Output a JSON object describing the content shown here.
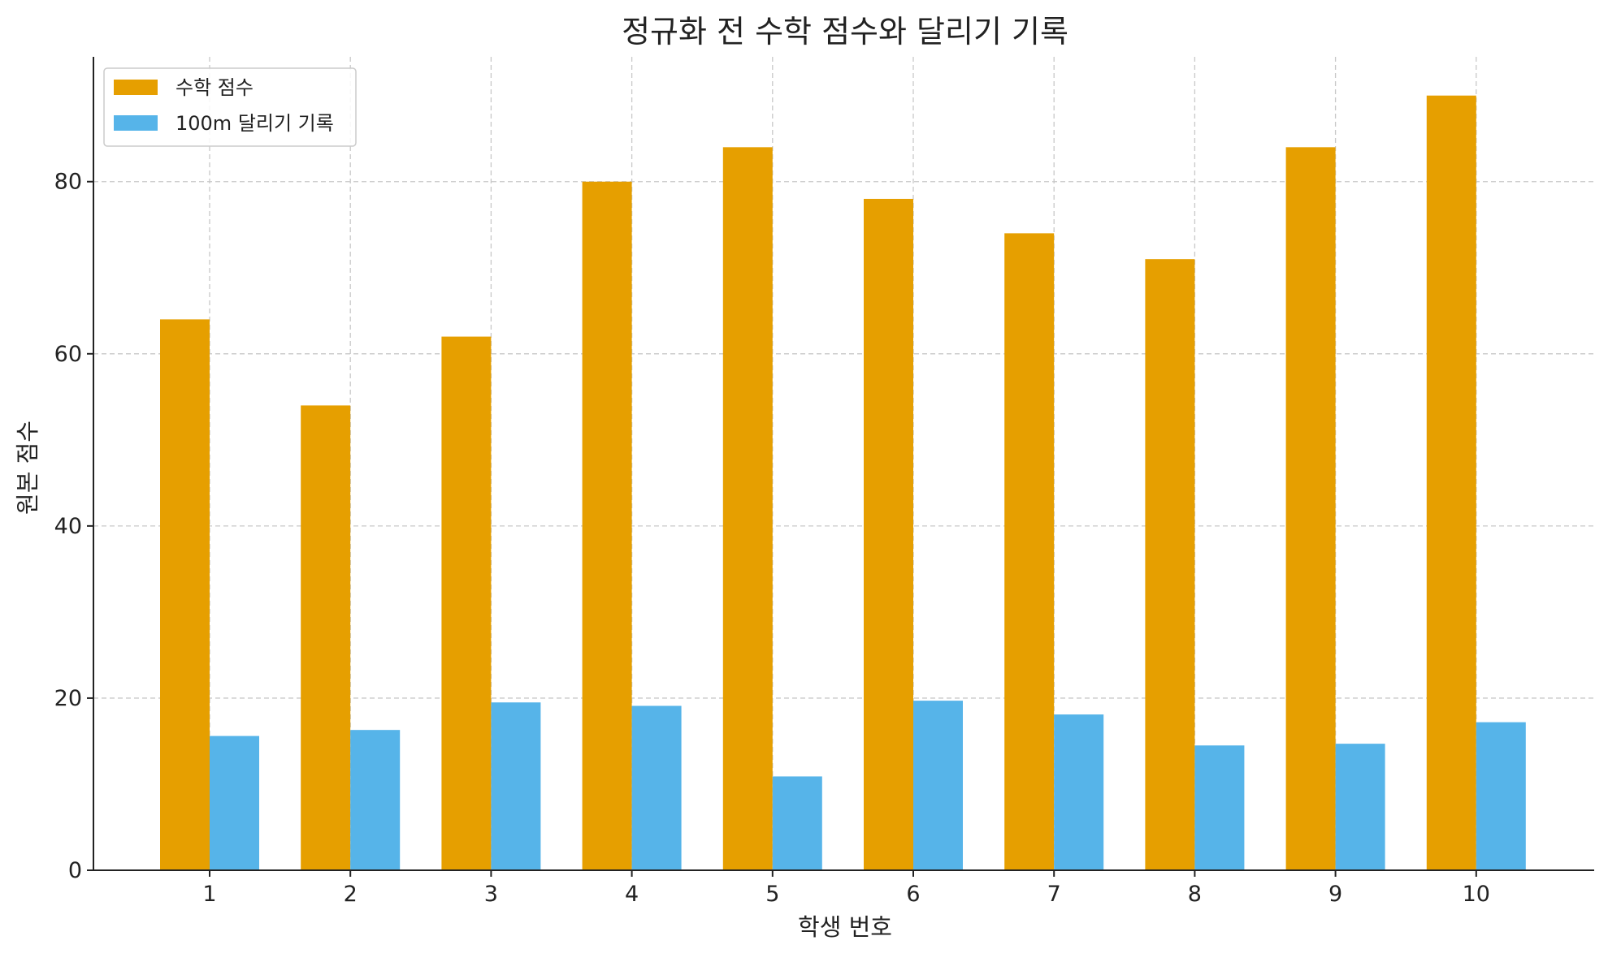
{
  "chart_data": {
    "type": "bar",
    "title": "정규화 전 수학 점수와 달리기 기록",
    "xlabel": "학생 번호",
    "ylabel": "원본 점수",
    "categories": [
      "1",
      "2",
      "3",
      "4",
      "5",
      "6",
      "7",
      "8",
      "9",
      "10"
    ],
    "series": [
      {
        "name": "수학 점수",
        "color": "#E69F00",
        "values": [
          64,
          54,
          62,
          80,
          84,
          78,
          74,
          71,
          84,
          90
        ]
      },
      {
        "name": "100m 달리기 기록",
        "color": "#56B4E9",
        "values": [
          15.6,
          16.3,
          19.5,
          19.1,
          10.9,
          19.7,
          18.1,
          14.5,
          14.7,
          17.2
        ]
      }
    ],
    "ylim": [
      0,
      94.5
    ],
    "yticks": [
      0,
      20,
      40,
      60,
      80
    ],
    "grid": true,
    "legend_position": "top-left"
  }
}
